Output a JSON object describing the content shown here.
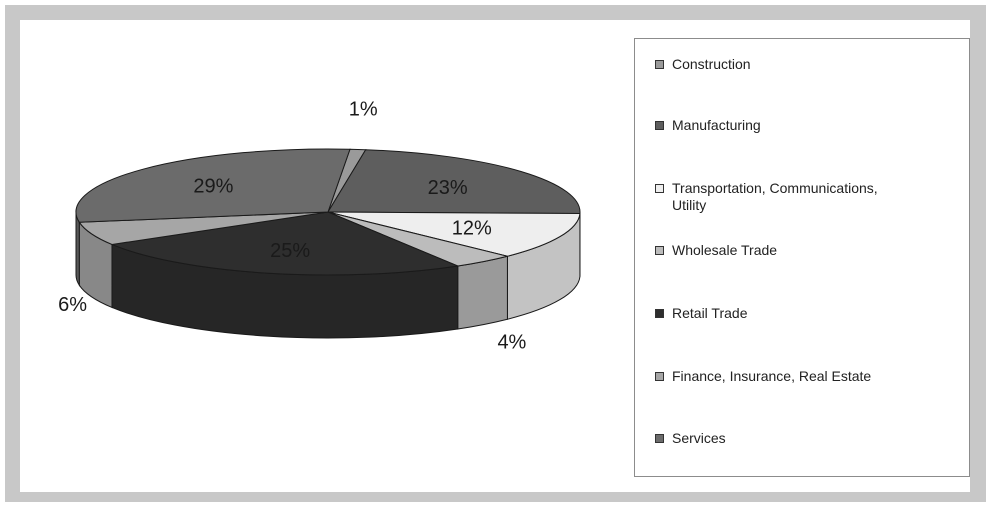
{
  "chart_data": {
    "type": "pie",
    "categories": [
      "Construction",
      "Manufacturing",
      "Transportation, Communications, Utility",
      "Wholesale Trade",
      "Retail Trade",
      "Finance, Insurance, Real Estate",
      "Services"
    ],
    "values": [
      1,
      23,
      12,
      4,
      25,
      6,
      29
    ],
    "labels": [
      "1%",
      "23%",
      "12%",
      "4%",
      "25%",
      "6%",
      "29%"
    ],
    "colors": [
      "#9a9a9a",
      "#5e5e5e",
      "#eeeeee",
      "#bcbcbc",
      "#2e2e2e",
      "#a6a6a6",
      "#6b6b6b"
    ],
    "legend_position": "right",
    "style": "3d"
  }
}
